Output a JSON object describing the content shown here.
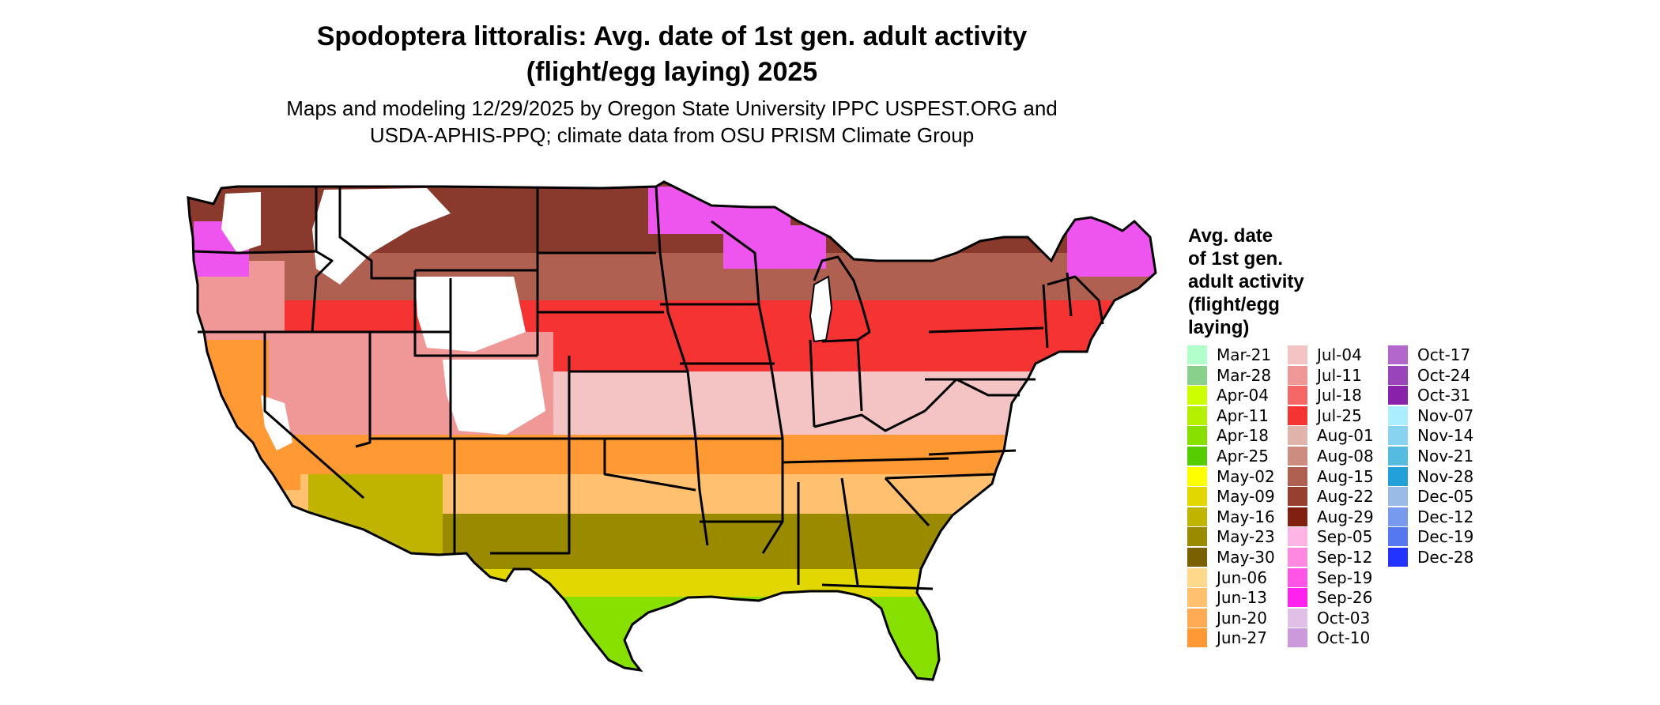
{
  "title": {
    "line1": "Spodoptera littoralis: Avg. date of 1st gen. adult activity",
    "line2": "(flight/egg laying) 2025"
  },
  "subtitle": {
    "line1": "Maps and modeling 12/29/2025 by Oregon State University IPPC USPEST.ORG and",
    "line2": "USDA-APHIS-PPQ; climate data from OSU PRISM Climate Group"
  },
  "legend": {
    "title_lines": [
      "Avg. date",
      "of 1st gen.",
      "adult activity",
      "(flight/egg",
      "laying)"
    ],
    "columns": [
      [
        {
          "label": "Mar-21",
          "color": "#b3ffcc"
        },
        {
          "label": "Mar-28",
          "color": "#88d08c"
        },
        {
          "label": "Apr-04",
          "color": "#ccff00"
        },
        {
          "label": "Apr-11",
          "color": "#b4f000"
        },
        {
          "label": "Apr-18",
          "color": "#88e000"
        },
        {
          "label": "Apr-25",
          "color": "#55cc00"
        },
        {
          "label": "May-02",
          "color": "#ffff00"
        },
        {
          "label": "May-09",
          "color": "#e0d800"
        },
        {
          "label": "May-16",
          "color": "#c0b400"
        },
        {
          "label": "May-23",
          "color": "#9a8a00"
        },
        {
          "label": "May-30",
          "color": "#7a6000"
        },
        {
          "label": "Jun-06",
          "color": "#ffd88c"
        },
        {
          "label": "Jun-13",
          "color": "#ffc070"
        },
        {
          "label": "Jun-20",
          "color": "#ffaa55"
        },
        {
          "label": "Jun-27",
          "color": "#ff9933"
        }
      ],
      [
        {
          "label": "Jul-04",
          "color": "#f4c4c4"
        },
        {
          "label": "Jul-11",
          "color": "#f09898"
        },
        {
          "label": "Jul-18",
          "color": "#f56666"
        },
        {
          "label": "Jul-25",
          "color": "#f53333"
        },
        {
          "label": "Aug-01",
          "color": "#e0b4aa"
        },
        {
          "label": "Aug-08",
          "color": "#cc8c80"
        },
        {
          "label": "Aug-15",
          "color": "#b06050"
        },
        {
          "label": "Aug-22",
          "color": "#984030"
        },
        {
          "label": "Aug-29",
          "color": "#802010"
        },
        {
          "label": "Sep-05",
          "color": "#ffb4e6"
        },
        {
          "label": "Sep-12",
          "color": "#ff88e0"
        },
        {
          "label": "Sep-19",
          "color": "#ff55e6"
        },
        {
          "label": "Sep-26",
          "color": "#ff22ee"
        },
        {
          "label": "Oct-03",
          "color": "#e0c0e6"
        },
        {
          "label": "Oct-10",
          "color": "#cc99dd"
        }
      ],
      [
        {
          "label": "Oct-17",
          "color": "#b366cc"
        },
        {
          "label": "Oct-24",
          "color": "#9944bb"
        },
        {
          "label": "Oct-31",
          "color": "#8822aa"
        },
        {
          "label": "Nov-07",
          "color": "#aaeeff"
        },
        {
          "label": "Nov-14",
          "color": "#88d4f0"
        },
        {
          "label": "Nov-21",
          "color": "#55bbe0"
        },
        {
          "label": "Nov-28",
          "color": "#22a0d8"
        },
        {
          "label": "Dec-05",
          "color": "#99bbe6"
        },
        {
          "label": "Dec-12",
          "color": "#7799ee"
        },
        {
          "label": "Dec-19",
          "color": "#5577f0"
        },
        {
          "label": "Dec-28",
          "color": "#2233ff"
        }
      ]
    ]
  },
  "map_colors": {
    "outline": "#000000",
    "unsuitable": "#ffffff",
    "north_band": "#8a3a2c",
    "magenta_band": "#ee55ee",
    "red_band": "#f53333",
    "pink_band": "#f4c4c4",
    "orange_band": "#ff9933",
    "olive_band": "#9a8a00",
    "green_band": "#88e000"
  }
}
